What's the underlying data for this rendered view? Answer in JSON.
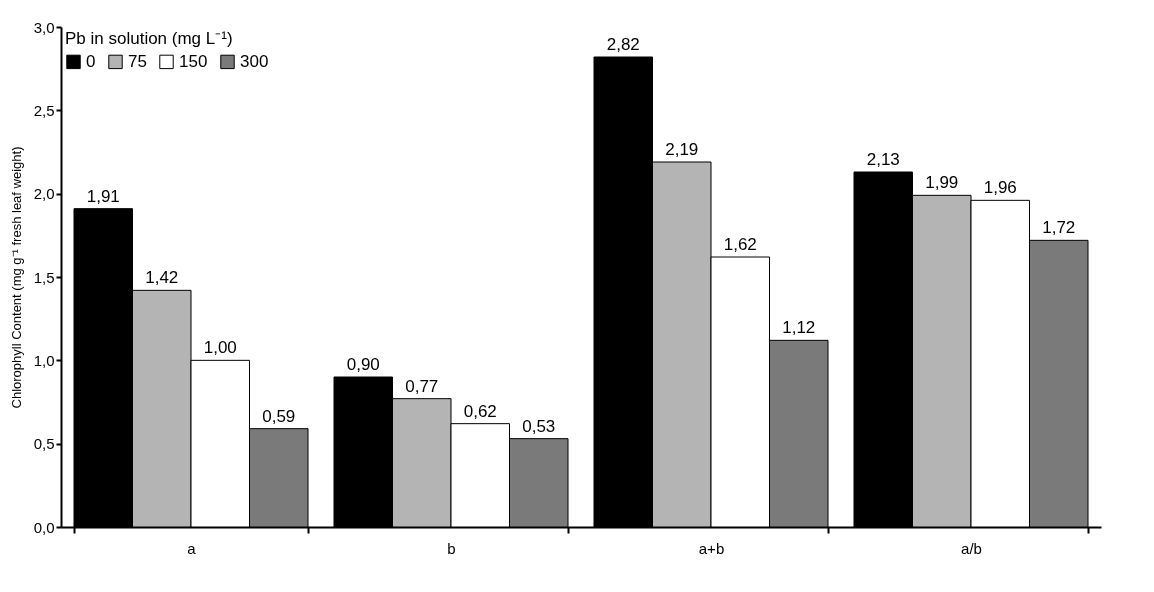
{
  "chart_data": {
    "type": "bar",
    "ylabel": "Chlorophyll Content (mg g⁻¹ fresh leaf weight)",
    "legend_title": "Pb in solution (mg L⁻¹)",
    "categories": [
      "a",
      "b",
      "a+b",
      "a/b"
    ],
    "series": [
      {
        "name": "0",
        "color": "#000000",
        "values": [
          1.91,
          0.9,
          2.82,
          2.13
        ],
        "value_labels": [
          "1,91",
          "0,90",
          "2,82",
          "2,13"
        ]
      },
      {
        "name": "75",
        "color": "#b4b4b4",
        "values": [
          1.42,
          0.77,
          2.19,
          1.99
        ],
        "value_labels": [
          "1,42",
          "0,77",
          "2,19",
          "1,99"
        ]
      },
      {
        "name": "150",
        "color": "#ffffff",
        "values": [
          1.0,
          0.62,
          1.62,
          1.96
        ],
        "value_labels": [
          "1,00",
          "0,62",
          "1,62",
          "1,96"
        ]
      },
      {
        "name": "300",
        "color": "#7a7a7a",
        "values": [
          0.59,
          0.53,
          1.12,
          1.72
        ],
        "value_labels": [
          "0,59",
          "0,53",
          "1,12",
          "1,72"
        ]
      }
    ],
    "ylim": [
      0,
      3
    ],
    "yticks": [
      {
        "value": 0,
        "label": "0,0"
      },
      {
        "value": 0.5,
        "label": "0,5"
      },
      {
        "value": 1,
        "label": "1,0"
      },
      {
        "value": 1.5,
        "label": "1,5"
      },
      {
        "value": 2,
        "label": "2,0"
      },
      {
        "value": 2.5,
        "label": "2,5"
      },
      {
        "value": 3,
        "label": "3,0"
      }
    ],
    "grid": false,
    "legend": "top left"
  }
}
